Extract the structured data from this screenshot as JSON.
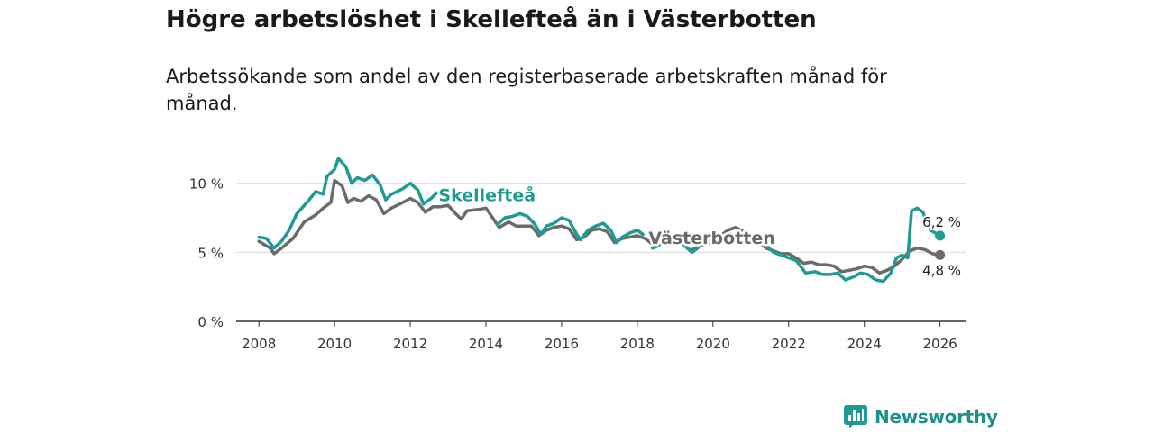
{
  "title": "Högre arbetslöshet i Skellefteå än i Västerbotten",
  "subtitle": "Arbetssökande som andel av den registerbaserade arbetskraften månad för månad.",
  "brand": {
    "name": "Newsworthy",
    "icon": "bar-chart-logo-icon",
    "color": "#1f9b94"
  },
  "chart_data": {
    "type": "line",
    "xlim": [
      2007.4,
      2026.7
    ],
    "ylim": [
      0,
      10.5
    ],
    "x_ticks": [
      2008,
      2010,
      2012,
      2014,
      2016,
      2018,
      2020,
      2022,
      2024,
      2026
    ],
    "y_ticks": [
      {
        "value": 0,
        "label": "0 %"
      },
      {
        "value": 5,
        "label": "5 %"
      },
      {
        "value": 10,
        "label": "10 %"
      }
    ],
    "series": [
      {
        "name": "Västerbotten",
        "color": "#6b6b6b",
        "end_label": "4,8 %",
        "points": [
          [
            2008.0,
            5.8
          ],
          [
            2008.3,
            5.3
          ],
          [
            2008.4,
            4.9
          ],
          [
            2008.6,
            5.3
          ],
          [
            2008.9,
            6.0
          ],
          [
            2009.2,
            7.2
          ],
          [
            2009.5,
            7.7
          ],
          [
            2009.7,
            8.2
          ],
          [
            2009.9,
            8.6
          ],
          [
            2010.0,
            10.2
          ],
          [
            2010.2,
            9.8
          ],
          [
            2010.35,
            8.6
          ],
          [
            2010.5,
            8.9
          ],
          [
            2010.7,
            8.7
          ],
          [
            2010.9,
            9.1
          ],
          [
            2011.1,
            8.8
          ],
          [
            2011.3,
            7.8
          ],
          [
            2011.5,
            8.2
          ],
          [
            2011.8,
            8.6
          ],
          [
            2012.0,
            8.9
          ],
          [
            2012.2,
            8.6
          ],
          [
            2012.4,
            7.9
          ],
          [
            2012.6,
            8.3
          ],
          [
            2012.8,
            8.3
          ],
          [
            2013.0,
            8.4
          ],
          [
            2013.2,
            7.8
          ],
          [
            2013.35,
            7.4
          ],
          [
            2013.5,
            8.0
          ],
          [
            2013.8,
            8.1
          ],
          [
            2014.0,
            8.2
          ],
          [
            2014.2,
            7.4
          ],
          [
            2014.35,
            6.8
          ],
          [
            2014.6,
            7.2
          ],
          [
            2014.8,
            6.9
          ],
          [
            2015.0,
            6.9
          ],
          [
            2015.2,
            6.9
          ],
          [
            2015.4,
            6.2
          ],
          [
            2015.6,
            6.6
          ],
          [
            2015.8,
            6.8
          ],
          [
            2016.0,
            6.9
          ],
          [
            2016.2,
            6.7
          ],
          [
            2016.4,
            5.9
          ],
          [
            2016.6,
            6.1
          ],
          [
            2016.8,
            6.6
          ],
          [
            2017.0,
            6.7
          ],
          [
            2017.2,
            6.5
          ],
          [
            2017.4,
            5.7
          ],
          [
            2017.6,
            6.0
          ],
          [
            2017.8,
            6.1
          ],
          [
            2018.0,
            6.2
          ],
          [
            2018.2,
            6.0
          ],
          [
            2018.4,
            5.6
          ],
          [
            2018.6,
            5.7
          ],
          [
            2018.8,
            5.8
          ],
          [
            2019.0,
            5.8
          ],
          [
            2019.2,
            5.6
          ],
          [
            2019.4,
            5.1
          ],
          [
            2019.6,
            5.4
          ],
          [
            2019.8,
            5.6
          ],
          [
            2020.0,
            5.7
          ],
          [
            2020.2,
            6.2
          ],
          [
            2020.4,
            6.6
          ],
          [
            2020.6,
            6.8
          ],
          [
            2020.8,
            6.5
          ],
          [
            2021.0,
            6.3
          ],
          [
            2021.2,
            5.8
          ],
          [
            2021.4,
            5.3
          ],
          [
            2021.6,
            5.1
          ],
          [
            2021.8,
            4.9
          ],
          [
            2022.0,
            4.9
          ],
          [
            2022.2,
            4.6
          ],
          [
            2022.4,
            4.2
          ],
          [
            2022.6,
            4.3
          ],
          [
            2022.8,
            4.1
          ],
          [
            2023.0,
            4.1
          ],
          [
            2023.2,
            4.0
          ],
          [
            2023.4,
            3.6
          ],
          [
            2023.6,
            3.7
          ],
          [
            2023.8,
            3.8
          ],
          [
            2024.0,
            4.0
          ],
          [
            2024.2,
            3.9
          ],
          [
            2024.4,
            3.5
          ],
          [
            2024.6,
            3.7
          ],
          [
            2024.8,
            4.0
          ],
          [
            2025.0,
            4.5
          ],
          [
            2025.2,
            5.1
          ],
          [
            2025.4,
            5.3
          ],
          [
            2025.6,
            5.2
          ],
          [
            2025.8,
            4.9
          ],
          [
            2026.0,
            4.8
          ]
        ]
      },
      {
        "name": "Skellefteå",
        "color": "#1f9b94",
        "end_label": "6,2 %",
        "points": [
          [
            2008.0,
            6.1
          ],
          [
            2008.2,
            6.0
          ],
          [
            2008.4,
            5.3
          ],
          [
            2008.6,
            5.8
          ],
          [
            2008.8,
            6.6
          ],
          [
            2009.0,
            7.8
          ],
          [
            2009.3,
            8.7
          ],
          [
            2009.5,
            9.4
          ],
          [
            2009.7,
            9.2
          ],
          [
            2009.8,
            10.5
          ],
          [
            2010.0,
            11.0
          ],
          [
            2010.1,
            11.8
          ],
          [
            2010.3,
            11.2
          ],
          [
            2010.45,
            10.0
          ],
          [
            2010.6,
            10.4
          ],
          [
            2010.8,
            10.2
          ],
          [
            2011.0,
            10.6
          ],
          [
            2011.2,
            9.9
          ],
          [
            2011.35,
            8.8
          ],
          [
            2011.5,
            9.2
          ],
          [
            2011.8,
            9.6
          ],
          [
            2012.0,
            10.0
          ],
          [
            2012.2,
            9.5
          ],
          [
            2012.35,
            8.5
          ],
          [
            2012.55,
            8.9
          ],
          [
            2012.7,
            9.3
          ]
        ],
        "segment2": [
          [
            2014.3,
            7.0
          ],
          [
            2014.5,
            7.5
          ],
          [
            2014.7,
            7.6
          ],
          [
            2014.9,
            7.8
          ],
          [
            2015.1,
            7.6
          ],
          [
            2015.3,
            7.0
          ],
          [
            2015.45,
            6.3
          ],
          [
            2015.6,
            6.9
          ],
          [
            2015.8,
            7.1
          ],
          [
            2016.0,
            7.5
          ],
          [
            2016.2,
            7.3
          ],
          [
            2016.4,
            6.3
          ],
          [
            2016.5,
            5.9
          ],
          [
            2016.7,
            6.6
          ],
          [
            2016.9,
            6.9
          ],
          [
            2017.1,
            7.1
          ],
          [
            2017.3,
            6.6
          ],
          [
            2017.45,
            5.7
          ],
          [
            2017.6,
            6.1
          ],
          [
            2017.8,
            6.4
          ],
          [
            2018.0,
            6.6
          ],
          [
            2018.15,
            6.3
          ]
        ],
        "segment3": [
          [
            2018.4,
            5.3
          ],
          [
            2018.5,
            5.4
          ],
          [
            2018.7,
            5.8
          ],
          [
            2018.9,
            6.0
          ],
          [
            2019.1,
            5.8
          ],
          [
            2019.3,
            5.4
          ],
          [
            2019.45,
            5.0
          ],
          [
            2019.6,
            5.3
          ]
        ],
        "segment4": [
          [
            2021.4,
            5.5
          ],
          [
            2021.6,
            5.0
          ],
          [
            2021.8,
            4.8
          ],
          [
            2022.0,
            4.6
          ],
          [
            2022.2,
            4.4
          ],
          [
            2022.45,
            3.5
          ],
          [
            2022.7,
            3.6
          ],
          [
            2022.9,
            3.4
          ],
          [
            2023.1,
            3.4
          ],
          [
            2023.3,
            3.5
          ],
          [
            2023.5,
            3.0
          ],
          [
            2023.7,
            3.2
          ],
          [
            2023.9,
            3.5
          ],
          [
            2024.1,
            3.4
          ],
          [
            2024.3,
            3.0
          ],
          [
            2024.5,
            2.9
          ],
          [
            2024.7,
            3.5
          ],
          [
            2024.85,
            4.6
          ],
          [
            2025.0,
            4.8
          ],
          [
            2025.15,
            4.6
          ],
          [
            2025.25,
            8.0
          ],
          [
            2025.4,
            8.2
          ],
          [
            2025.55,
            7.9
          ],
          [
            2025.75,
            6.6
          ],
          [
            2026.0,
            6.2
          ]
        ]
      }
    ],
    "inline_labels": [
      {
        "series": "Skellefteå",
        "text": "Skellefteå",
        "x": 2012.7,
        "y": 9.1
      },
      {
        "series": "Västerbotten",
        "text": "Västerbotten",
        "x": 2018.25,
        "y": 6.0
      }
    ]
  }
}
